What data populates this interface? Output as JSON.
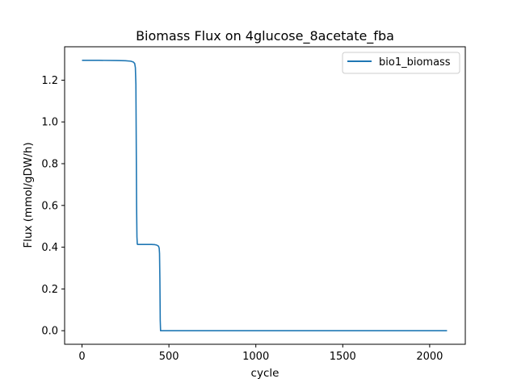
{
  "chart_data": {
    "type": "line",
    "title": "Biomass Flux on 4glucose_8acetate_fba",
    "xlabel": "cycle",
    "ylabel": "Flux (mmol/gDW/h)",
    "xlim": [
      -100,
      2205
    ],
    "ylim": [
      -0.065,
      1.36
    ],
    "xticks": [
      0,
      500,
      1000,
      1500,
      2000
    ],
    "yticks": [
      0.0,
      0.2,
      0.4,
      0.6,
      0.8,
      1.0,
      1.2
    ],
    "grid": false,
    "legend_position": "top-right",
    "series": [
      {
        "name": "bio1_biomass",
        "color": "#1f77b4",
        "x": [
          0,
          100,
          200,
          250,
          280,
          295,
          303,
          307,
          310,
          312,
          314,
          316,
          318,
          320,
          330,
          350,
          400,
          420,
          430,
          440,
          444,
          446,
          448,
          450,
          452,
          455,
          500,
          1000,
          1500,
          2000,
          2100
        ],
        "y": [
          1.295,
          1.295,
          1.294,
          1.293,
          1.291,
          1.287,
          1.28,
          1.26,
          1.18,
          0.9,
          0.6,
          0.45,
          0.415,
          0.413,
          0.413,
          0.413,
          0.413,
          0.412,
          0.41,
          0.405,
          0.395,
          0.37,
          0.25,
          0.05,
          0.0,
          0.0,
          0.0,
          0.0,
          0.0,
          0.0,
          0.0
        ]
      }
    ]
  }
}
